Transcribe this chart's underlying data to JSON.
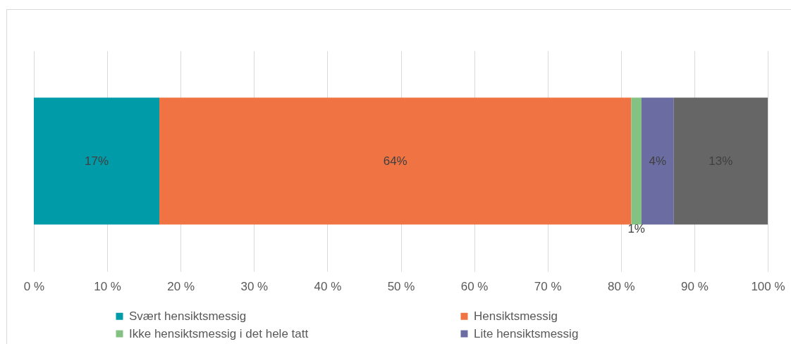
{
  "chart_data": {
    "type": "bar",
    "orientation": "horizontal",
    "stacked": true,
    "categories": [
      null
    ],
    "series": [
      {
        "name": "Svært hensiktsmessig",
        "color": "#009ba9",
        "values": [
          17.1
        ],
        "value_labels": [
          "17%"
        ]
      },
      {
        "name": "Hensiktsmessig",
        "color": "#f07343",
        "values": [
          64.3
        ],
        "value_labels": [
          "64%"
        ]
      },
      {
        "name": "Ikke hensiktsmessig i det hele tatt",
        "color": "#84c283",
        "values": [
          1.4
        ],
        "value_labels": [
          "1%"
        ]
      },
      {
        "name": "Lite hensiktsmessig",
        "color": "#6b6ca2",
        "values": [
          4.4
        ],
        "value_labels": [
          "4%"
        ]
      },
      {
        "color": "#666666",
        "values": [
          12.8
        ],
        "value_labels": [
          "13%"
        ]
      }
    ],
    "xlim": [
      0,
      100
    ],
    "xticks": [
      {
        "value": 0,
        "label": "0 %"
      },
      {
        "value": 10,
        "label": "10 %"
      },
      {
        "value": 20,
        "label": "20 %"
      },
      {
        "value": 30,
        "label": "30 %"
      },
      {
        "value": 40,
        "label": "40 %"
      },
      {
        "value": 50,
        "label": "50 %"
      },
      {
        "value": 60,
        "label": "60 %"
      },
      {
        "value": 70,
        "label": "70 %"
      },
      {
        "value": 80,
        "label": "80 %"
      },
      {
        "value": 90,
        "label": "90 %"
      },
      {
        "value": 100,
        "label": "100 %"
      }
    ],
    "grid": "x",
    "legend": "bottom",
    "tick_labels": "x"
  }
}
